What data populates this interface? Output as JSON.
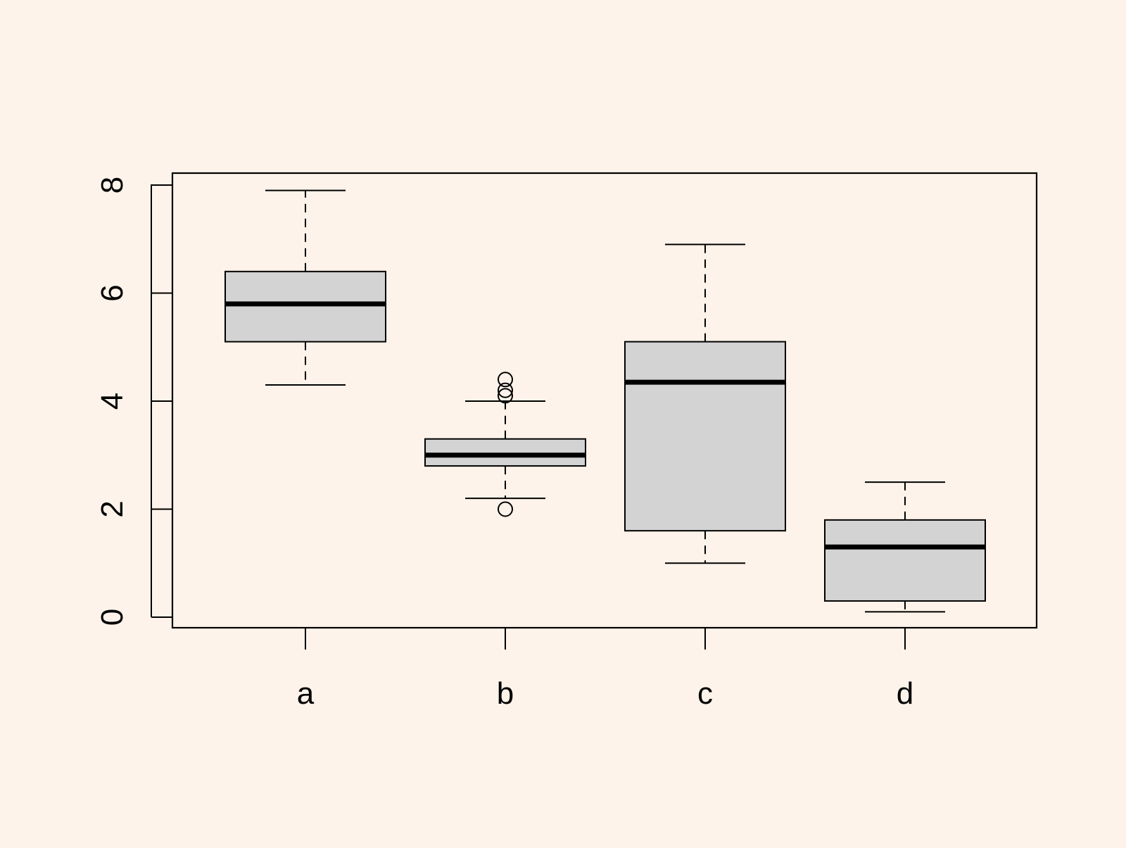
{
  "colors": {
    "background": "#fdf3ea",
    "box_fill": "#d3d3d3",
    "stroke": "#000000"
  },
  "chart_data": {
    "type": "boxplot",
    "title": "",
    "xlabel": "",
    "ylabel": "",
    "ylim": [
      -0.2,
      8.2
    ],
    "y_ticks": [
      0,
      2,
      4,
      6,
      8
    ],
    "grid": false,
    "categories": [
      "a",
      "b",
      "c",
      "d"
    ],
    "boxes": [
      {
        "category": "a",
        "whisker_low": 4.3,
        "q1": 5.1,
        "median": 5.8,
        "q3": 6.4,
        "whisker_high": 7.9,
        "outliers": []
      },
      {
        "category": "b",
        "whisker_low": 2.2,
        "q1": 2.8,
        "median": 3.0,
        "q3": 3.3,
        "whisker_high": 4.0,
        "outliers": [
          2.0,
          4.1,
          4.2,
          4.4
        ]
      },
      {
        "category": "c",
        "whisker_low": 1.0,
        "q1": 1.6,
        "median": 4.35,
        "q3": 5.1,
        "whisker_high": 6.9,
        "outliers": []
      },
      {
        "category": "d",
        "whisker_low": 0.1,
        "q1": 0.3,
        "median": 1.3,
        "q3": 1.8,
        "whisker_high": 2.5,
        "outliers": []
      }
    ]
  }
}
